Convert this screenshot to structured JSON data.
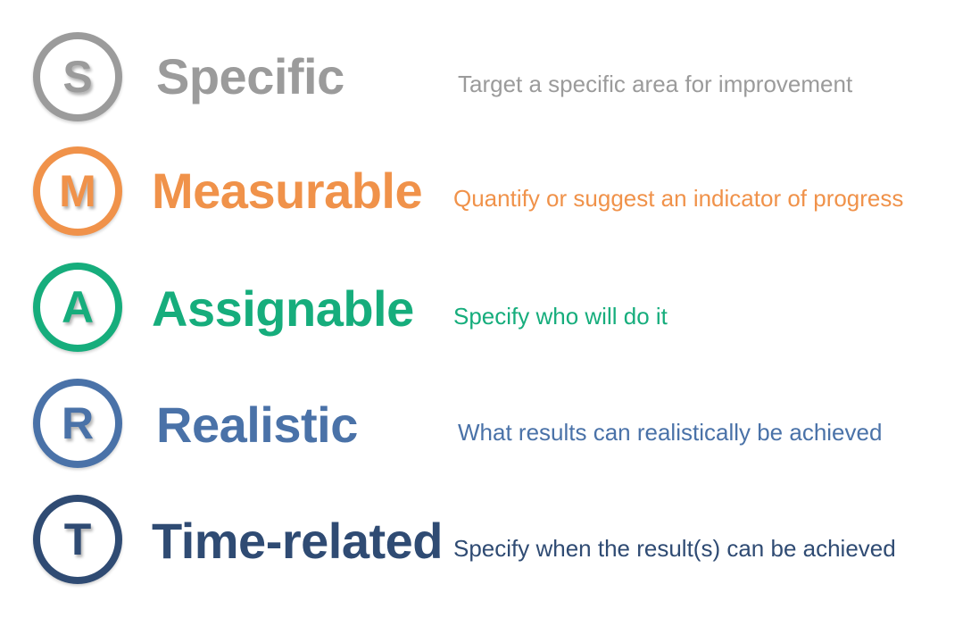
{
  "rows": [
    {
      "letter": "S",
      "term": "Specific",
      "description": "Target a specific area for improvement",
      "color": "#9b9b9b"
    },
    {
      "letter": "M",
      "term": "Measurable",
      "description": "Quantify or suggest an indicator of progress",
      "color": "#f0924a"
    },
    {
      "letter": "A",
      "term": "Assignable",
      "description": "Specify who will do it",
      "color": "#16ad7c"
    },
    {
      "letter": "R",
      "term": "Realistic",
      "description": "What results can realistically be achieved",
      "color": "#4a72a8"
    },
    {
      "letter": "T",
      "term": "Time-related",
      "description": "Specify when the result(s) can be achieved",
      "color": "#2f4b73"
    }
  ]
}
